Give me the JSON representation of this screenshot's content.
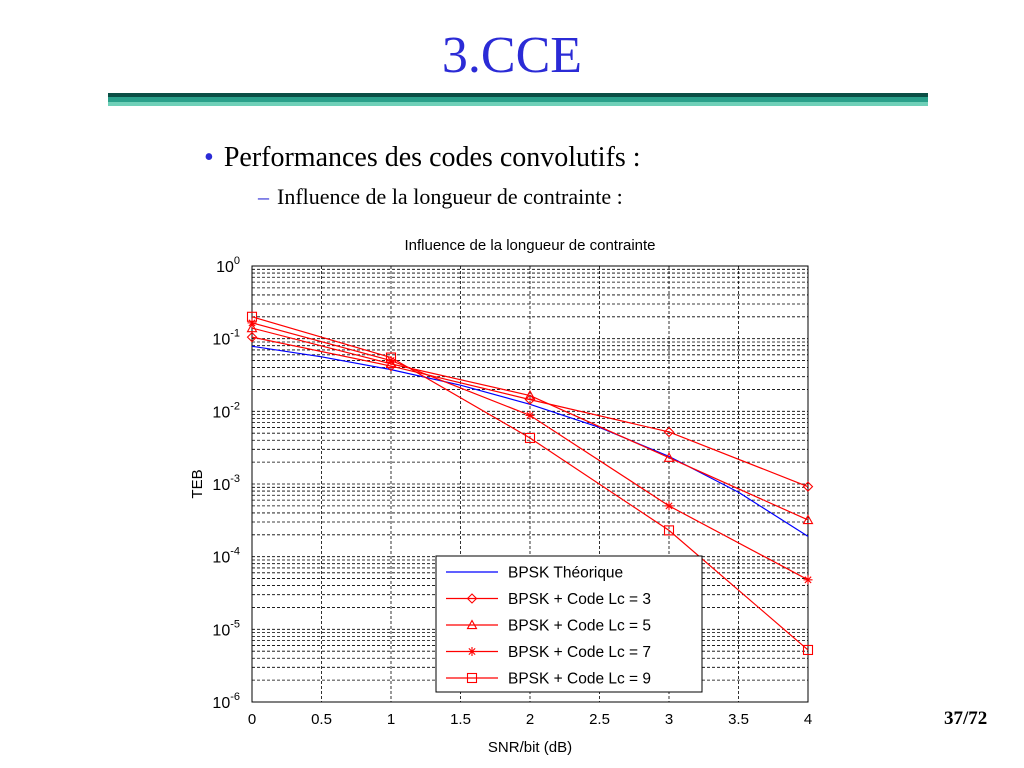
{
  "slide": {
    "title": "3.CCE",
    "bullet1": "Performances des codes convolutifs :",
    "bullet2": "Influence de la longueur de contrainte :",
    "bullet1_marker": "•",
    "bullet2_marker": "–",
    "page_number": "37/72"
  },
  "colors": {
    "title": "#2b2bd6",
    "bpsk_theory": "#0000ff",
    "coded": "#ff0000",
    "accent_rule": "#2aa08a"
  },
  "chart_data": {
    "type": "line",
    "title": "Influence de la longueur de contrainte",
    "xlabel": "SNR/bit (dB)",
    "ylabel": "TEB",
    "xlim": [
      0,
      4
    ],
    "ylim": [
      1e-06,
      1
    ],
    "yscale": "log",
    "grid": true,
    "legend_position": "bottom-right",
    "x_ticks": [
      0,
      0.5,
      1,
      1.5,
      2,
      2.5,
      3,
      3.5,
      4
    ],
    "x_tick_labels": [
      "0",
      "0.5",
      "1",
      "1.5",
      "2",
      "2.5",
      "3",
      "3.5",
      "4"
    ],
    "y_ticks": [
      1,
      0.1,
      0.01,
      0.001,
      0.0001,
      1e-05,
      1e-06
    ],
    "y_tick_bases": [
      "10",
      "10",
      "10",
      "10",
      "10",
      "10",
      "10"
    ],
    "y_tick_exponents": [
      "0",
      "-1",
      "-2",
      "-3",
      "-4",
      "-5",
      "-6"
    ],
    "series": [
      {
        "name": "BPSK Théorique",
        "color": "#0000ff",
        "marker": "none",
        "x": [
          0,
          0.5,
          1,
          1.5,
          2,
          2.5,
          3,
          3.5,
          4
        ],
        "values": [
          0.0786,
          0.0563,
          0.0375,
          0.0229,
          0.0125,
          0.006,
          0.0024,
          0.00077,
          0.00019
        ]
      },
      {
        "name": "BPSK + Code Lc = 3",
        "color": "#ff0000",
        "marker": "diamond",
        "x": [
          0,
          1,
          2,
          3,
          4
        ],
        "values": [
          0.105,
          0.042,
          0.0145,
          0.0052,
          0.00092
        ]
      },
      {
        "name": "BPSK + Code Lc = 5",
        "color": "#ff0000",
        "marker": "triangle",
        "x": [
          0,
          1,
          2,
          3,
          4
        ],
        "values": [
          0.14,
          0.045,
          0.0165,
          0.0023,
          0.00032
        ]
      },
      {
        "name": "BPSK + Code Lc = 7",
        "color": "#ff0000",
        "marker": "star",
        "x": [
          0,
          1,
          2,
          3,
          4
        ],
        "values": [
          0.165,
          0.05,
          0.0088,
          0.0005,
          4.8e-05
        ]
      },
      {
        "name": "BPSK + Code Lc = 9",
        "color": "#ff0000",
        "marker": "square",
        "x": [
          0,
          1,
          2,
          3,
          4
        ],
        "values": [
          0.2,
          0.055,
          0.0043,
          0.00023,
          5.2e-06
        ]
      }
    ]
  }
}
